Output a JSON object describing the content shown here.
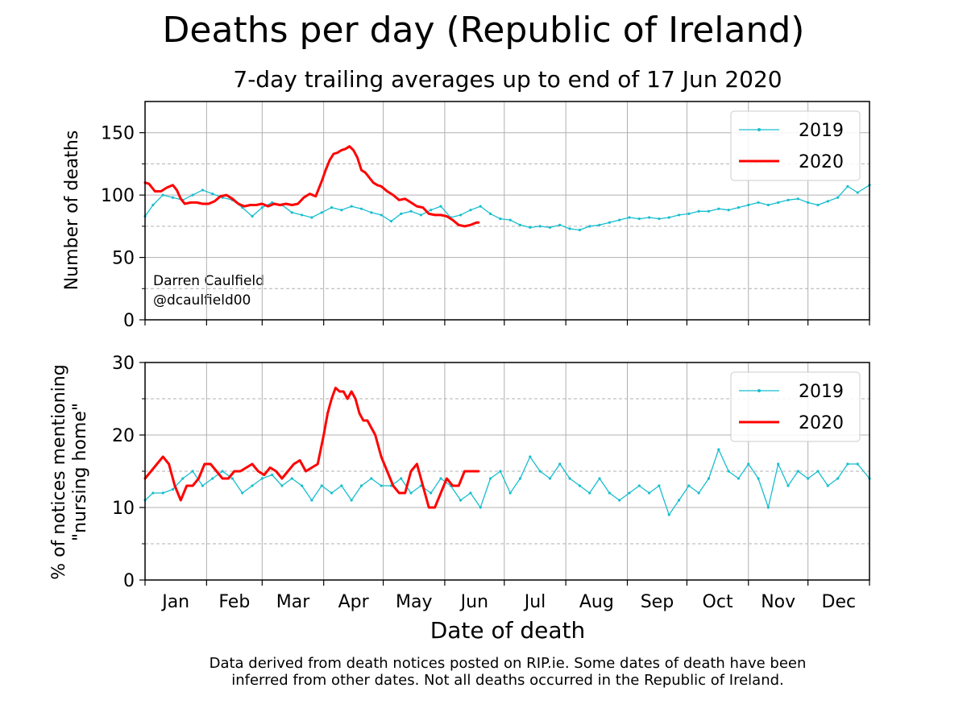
{
  "title": "Deaths per day (Republic of Ireland)",
  "subtitle": "7-day trailing averages up to end of 17 Jun 2020",
  "x_axis_label": "Date of death",
  "months": [
    "Jan",
    "Feb",
    "Mar",
    "Apr",
    "May",
    "Jun",
    "Jul",
    "Aug",
    "Sep",
    "Oct",
    "Nov",
    "Dec"
  ],
  "footnote": {
    "line1": "Data derived from death notices posted on RIP.ie. Some dates of death have been",
    "line2": "inferred from other dates. Not all deaths occurred in the Republic of Ireland."
  },
  "attribution": {
    "name": "Darren Caulfield",
    "handle": "@dcaulfield00"
  },
  "colors": {
    "series_2019": "#17becf",
    "series_2020": "#ff0000",
    "grid": "#b0b0b0"
  },
  "chart_data": [
    {
      "type": "line",
      "x_units": "day of year",
      "xlim": [
        1,
        366
      ],
      "ylim": [
        0,
        175
      ],
      "yticks": [
        0,
        50,
        100,
        150
      ],
      "ylabel": "Number of deaths",
      "grid": true,
      "legend_position": "top-right",
      "series": [
        {
          "name": "2019",
          "x": [
            1,
            5,
            10,
            15,
            20,
            25,
            30,
            35,
            40,
            45,
            50,
            55,
            60,
            65,
            70,
            75,
            80,
            85,
            90,
            95,
            100,
            105,
            110,
            115,
            120,
            125,
            130,
            135,
            140,
            145,
            150,
            155,
            160,
            165,
            170,
            175,
            180,
            185,
            190,
            195,
            200,
            205,
            210,
            215,
            220,
            225,
            230,
            235,
            240,
            245,
            250,
            255,
            260,
            265,
            270,
            275,
            280,
            285,
            290,
            295,
            300,
            305,
            310,
            315,
            320,
            325,
            330,
            335,
            340,
            345,
            350,
            355,
            360,
            366
          ],
          "y": [
            83,
            92,
            100,
            98,
            96,
            100,
            104,
            101,
            98,
            96,
            90,
            83,
            90,
            94,
            92,
            86,
            84,
            82,
            86,
            90,
            88,
            91,
            89,
            86,
            84,
            79,
            85,
            87,
            84,
            88,
            91,
            82,
            84,
            88,
            91,
            85,
            81,
            80,
            76,
            74,
            75,
            74,
            76,
            73,
            72,
            75,
            76,
            78,
            80,
            82,
            81,
            82,
            81,
            82,
            84,
            85,
            87,
            87,
            89,
            88,
            90,
            92,
            94,
            92,
            94,
            96,
            97,
            94,
            92,
            95,
            98,
            107,
            102,
            108
          ]
        },
        {
          "name": "2020",
          "x": [
            1,
            3,
            6,
            9,
            12,
            15,
            17,
            19,
            21,
            24,
            27,
            30,
            33,
            36,
            39,
            42,
            45,
            48,
            51,
            54,
            57,
            60,
            63,
            66,
            69,
            72,
            75,
            78,
            81,
            84,
            87,
            90,
            92,
            94,
            96,
            98,
            100,
            102,
            104,
            106,
            108,
            110,
            112,
            114,
            116,
            118,
            120,
            123,
            126,
            129,
            132,
            135,
            138,
            141,
            144,
            147,
            150,
            153,
            156,
            159,
            162,
            165,
            168,
            169
          ],
          "y": [
            110,
            109,
            103,
            103,
            106,
            108,
            104,
            97,
            93,
            94,
            94,
            93,
            93,
            95,
            99,
            100,
            97,
            93,
            91,
            92,
            92,
            93,
            91,
            93,
            92,
            93,
            92,
            93,
            98,
            101,
            99,
            111,
            120,
            128,
            133,
            134,
            136,
            137,
            139,
            136,
            130,
            120,
            118,
            114,
            110,
            108,
            107,
            103,
            100,
            96,
            97,
            94,
            91,
            90,
            85,
            84,
            84,
            83,
            80,
            76,
            75,
            76,
            78,
            78
          ]
        }
      ]
    },
    {
      "type": "line",
      "x_units": "day of year",
      "xlim": [
        1,
        366
      ],
      "ylim": [
        0,
        30
      ],
      "yticks": [
        0,
        10,
        20,
        30
      ],
      "ylabel_line1": "% of notices mentioning",
      "ylabel_line2": "\"nursing home\"",
      "grid": true,
      "legend_position": "top-right",
      "series": [
        {
          "name": "2019",
          "x": [
            1,
            5,
            10,
            15,
            20,
            25,
            30,
            35,
            40,
            45,
            50,
            55,
            60,
            65,
            70,
            75,
            80,
            85,
            90,
            95,
            100,
            105,
            110,
            115,
            120,
            125,
            130,
            135,
            140,
            145,
            150,
            155,
            160,
            165,
            170,
            175,
            180,
            185,
            190,
            195,
            200,
            205,
            210,
            215,
            220,
            225,
            230,
            235,
            240,
            245,
            250,
            255,
            260,
            265,
            270,
            275,
            280,
            285,
            290,
            295,
            300,
            305,
            310,
            315,
            320,
            325,
            330,
            335,
            340,
            345,
            350,
            355,
            360,
            366
          ],
          "y": [
            11,
            12,
            12,
            12.5,
            14,
            15,
            13,
            14,
            15,
            14,
            12,
            13,
            14,
            14.5,
            13,
            14,
            13,
            11,
            13,
            12,
            13,
            11,
            13,
            14,
            13,
            13,
            14,
            12,
            13,
            12,
            14,
            13,
            11,
            12,
            10,
            14,
            15,
            12,
            14,
            17,
            15,
            14,
            16,
            14,
            13,
            12,
            14,
            12,
            11,
            12,
            13,
            12,
            13,
            9,
            11,
            13,
            12,
            14,
            18,
            15,
            14,
            16,
            14,
            10,
            16,
            13,
            15,
            14,
            15,
            13,
            14,
            16,
            16,
            14
          ]
        },
        {
          "name": "2020",
          "x": [
            1,
            4,
            7,
            10,
            13,
            16,
            19,
            22,
            25,
            28,
            31,
            34,
            37,
            40,
            43,
            46,
            49,
            52,
            55,
            58,
            61,
            64,
            67,
            70,
            73,
            76,
            79,
            82,
            85,
            88,
            91,
            93,
            95,
            97,
            99,
            101,
            103,
            105,
            107,
            109,
            111,
            113,
            115,
            117,
            120,
            123,
            126,
            129,
            132,
            135,
            138,
            141,
            144,
            147,
            150,
            153,
            156,
            159,
            162,
            165,
            168,
            169
          ],
          "y": [
            14,
            15,
            16,
            17,
            16,
            13,
            11,
            13,
            13,
            14,
            16,
            16,
            15,
            14,
            14,
            15,
            15,
            15.5,
            16,
            15,
            14.5,
            15.5,
            15,
            14,
            15,
            16,
            16.5,
            15,
            15.5,
            16,
            20,
            23,
            25,
            26.5,
            26,
            26,
            25,
            26,
            25,
            23,
            22,
            22,
            21,
            20,
            17,
            15,
            13,
            12,
            12,
            15,
            16,
            13,
            10,
            10,
            12,
            14,
            13,
            13,
            15,
            15,
            15,
            15
          ]
        }
      ]
    }
  ]
}
